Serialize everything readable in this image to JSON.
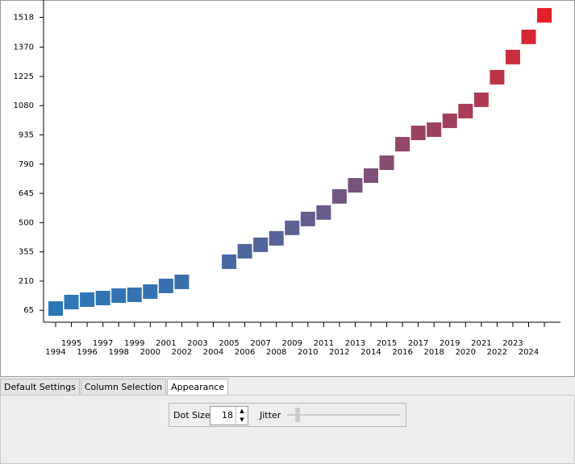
{
  "chart_data": {
    "type": "scatter",
    "categories": [
      "1994",
      "1995",
      "1996",
      "1997",
      "1998",
      "1999",
      "2000",
      "2001",
      "2002",
      "2003",
      "2004",
      "2005",
      "2006",
      "2007",
      "2008",
      "2009",
      "2010",
      "2011",
      "2012",
      "2013",
      "2014",
      "2015",
      "2016",
      "2017",
      "2018",
      "2019",
      "2020",
      "2021",
      "2022",
      "2023",
      "2024",
      null
    ],
    "values": [
      74,
      106,
      118,
      126,
      138,
      142,
      158,
      186,
      206,
      null,
      null,
      306,
      358,
      390,
      422,
      474,
      518,
      550,
      630,
      685,
      733,
      797,
      889,
      945,
      961,
      1005,
      1053,
      1109,
      1221,
      1321,
      1421,
      1528
    ],
    "color_range": [
      "#2a78b8",
      "#e3202a"
    ],
    "ylim": [
      14,
      1596
    ],
    "yticks": [
      65,
      210,
      355,
      500,
      645,
      790,
      935,
      1080,
      1225,
      1370,
      1518
    ]
  },
  "ui": {
    "tabs": [
      "Default Settings",
      "Column Selection",
      "Appearance"
    ],
    "dot_size_label": "Dot Size",
    "dot_size": 18,
    "jitter_label": "Jitter"
  }
}
